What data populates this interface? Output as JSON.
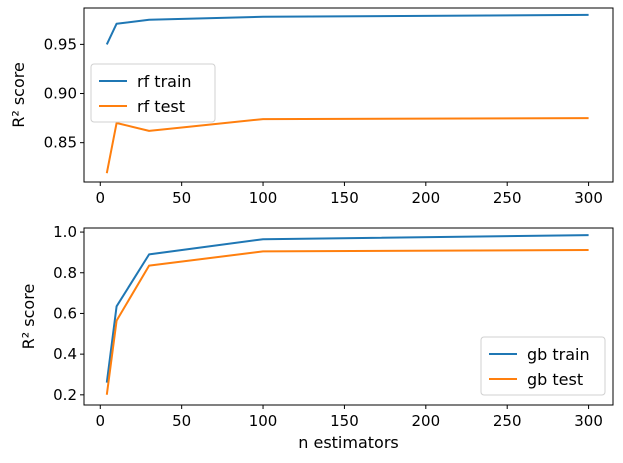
{
  "chart_data": [
    {
      "type": "line",
      "xlabel": "",
      "ylabel": "R² score",
      "xlim": [
        -10,
        315
      ],
      "ylim": [
        0.81,
        0.987
      ],
      "xticks": [
        0,
        50,
        100,
        150,
        200,
        250,
        300
      ],
      "yticks": [
        0.85,
        0.9,
        0.95
      ],
      "ytick_labels": [
        "0.85",
        "0.90",
        "0.95"
      ],
      "legend_position": "center-left",
      "series": [
        {
          "name": "rf train",
          "color": "#1f77b4",
          "x": [
            4,
            10,
            30,
            100,
            300
          ],
          "y": [
            0.95,
            0.971,
            0.975,
            0.978,
            0.98
          ]
        },
        {
          "name": "rf test",
          "color": "#ff7f0e",
          "x": [
            4,
            10,
            30,
            100,
            300
          ],
          "y": [
            0.819,
            0.87,
            0.862,
            0.874,
            0.875
          ]
        }
      ]
    },
    {
      "type": "line",
      "xlabel": "n estimators",
      "ylabel": "R² score",
      "xlim": [
        -10,
        315
      ],
      "ylim": [
        0.15,
        1.02
      ],
      "xticks": [
        0,
        50,
        100,
        150,
        200,
        250,
        300
      ],
      "yticks": [
        0.2,
        0.4,
        0.6,
        0.8,
        1.0
      ],
      "ytick_labels": [
        "0.2",
        "0.4",
        "0.6",
        "0.8",
        "1.0"
      ],
      "legend_position": "lower-right",
      "series": [
        {
          "name": "gb train",
          "color": "#1f77b4",
          "x": [
            4,
            10,
            30,
            100,
            300
          ],
          "y": [
            0.26,
            0.635,
            0.89,
            0.965,
            0.985
          ]
        },
        {
          "name": "gb test",
          "color": "#ff7f0e",
          "x": [
            4,
            10,
            30,
            100,
            300
          ],
          "y": [
            0.2,
            0.565,
            0.835,
            0.905,
            0.912
          ]
        }
      ]
    }
  ]
}
